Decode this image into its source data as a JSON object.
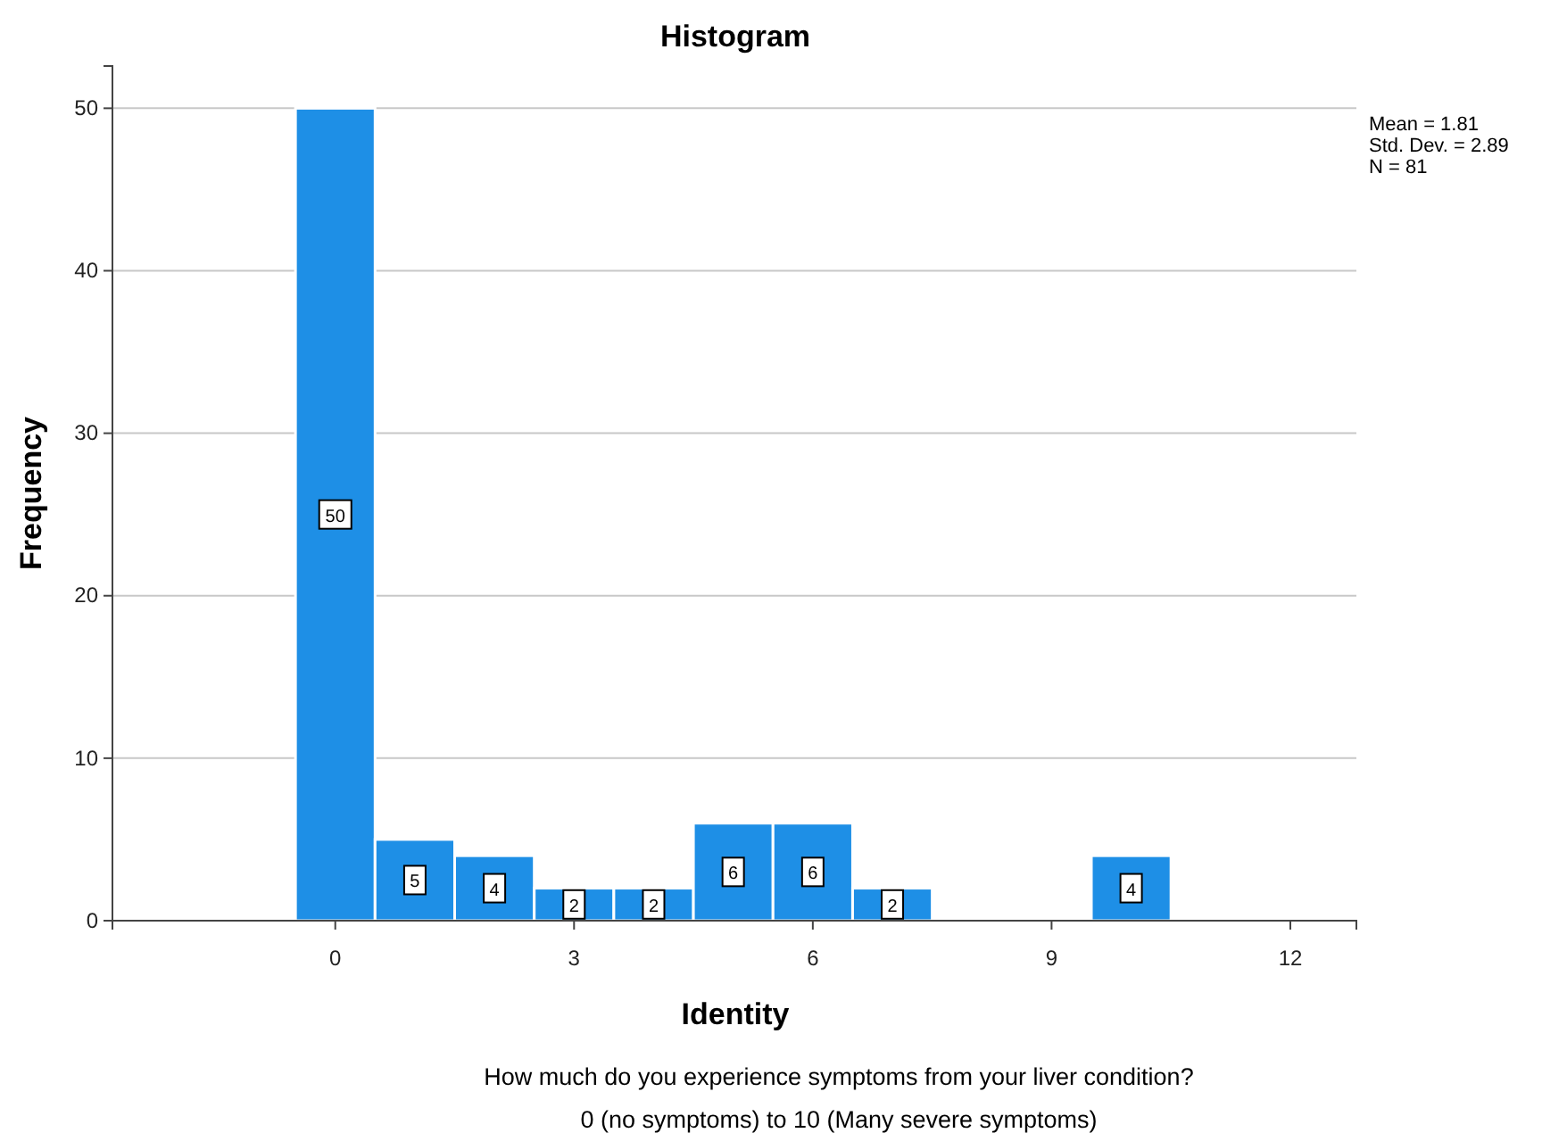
{
  "chart_data": {
    "type": "histogram",
    "title": "Histogram",
    "xlabel": "Identity",
    "ylabel": "Frequency",
    "bins": [
      -0.5,
      0.5,
      1.5,
      2.5,
      3.5,
      4.5,
      5.5,
      6.5,
      7.5,
      8.5,
      9.5,
      10.5
    ],
    "values": [
      50,
      5,
      4,
      2,
      2,
      6,
      6,
      2,
      0,
      0,
      4
    ],
    "value_labels": [
      "50",
      "5",
      "4",
      "2",
      "2",
      "6",
      "6",
      "2",
      null,
      null,
      "4"
    ],
    "color": "#1e8fe6",
    "xlim": [
      -2.8,
      12.83
    ],
    "xticks": [
      0,
      3,
      6,
      9,
      12
    ],
    "ylim": [
      0,
      52.6
    ],
    "yticks": [
      0,
      10,
      20,
      30,
      40,
      50
    ],
    "grid": "y",
    "annotations": [
      "Mean = 1.81",
      "Std. Dev. = 2.89",
      "N = 81",
      "How much do you experience symptoms from your liver condition?",
      "0 (no symptoms) to 10 (Many severe symptoms)"
    ]
  }
}
